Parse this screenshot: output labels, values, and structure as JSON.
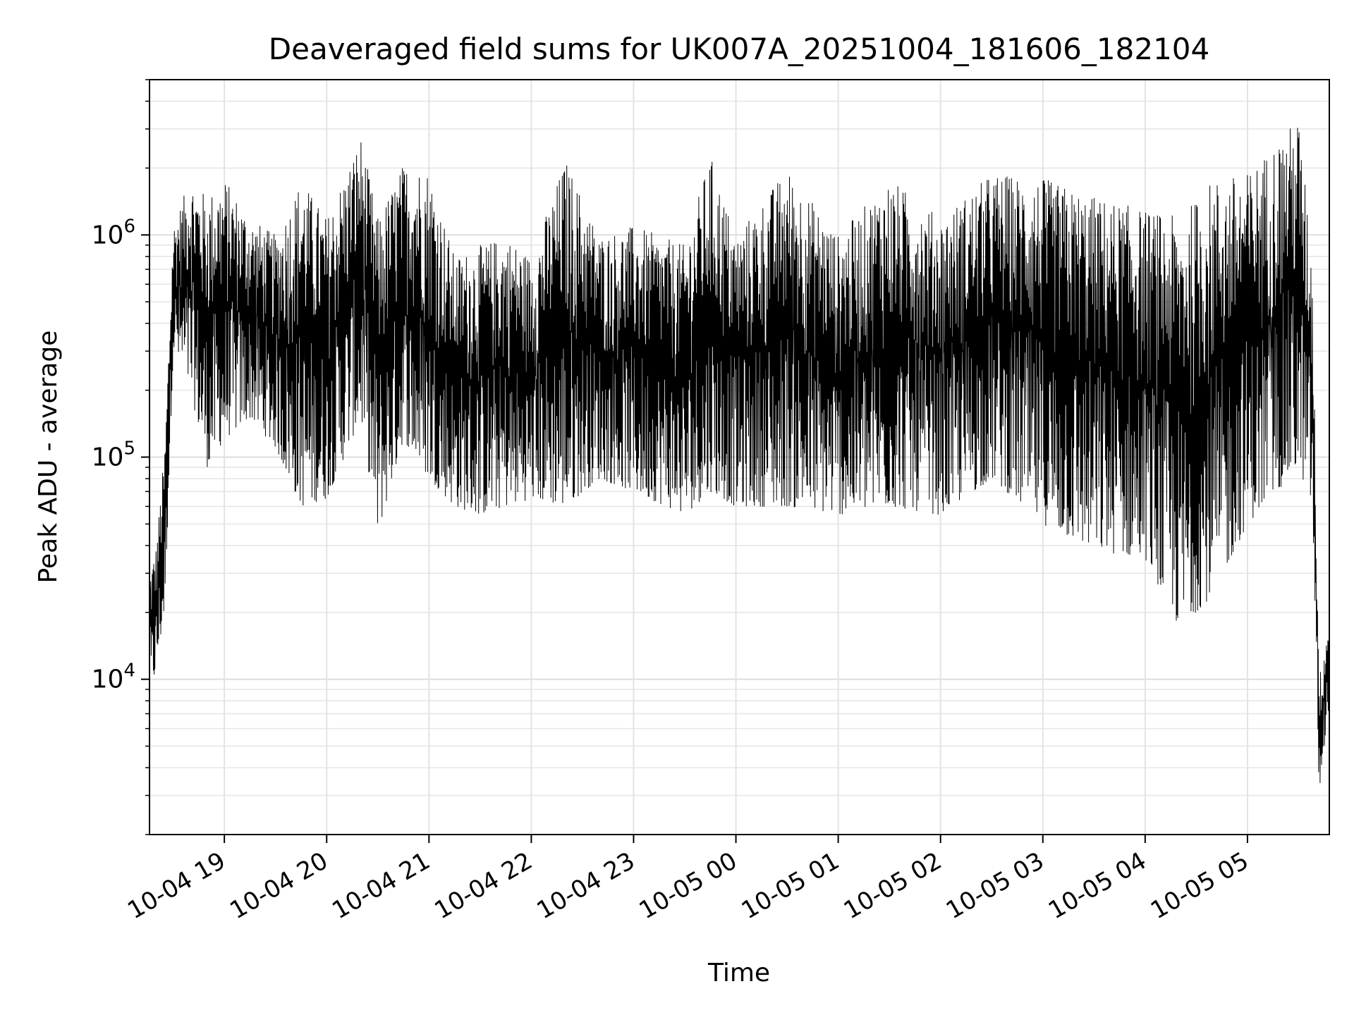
{
  "chart_data": {
    "type": "line",
    "title": "Deaveraged field sums for UK007A_20251004_181606_182104",
    "xlabel": "Time",
    "ylabel": "Peak ADU - average",
    "yscale": "log",
    "ylim": [
      2000,
      5000000
    ],
    "xlim": [
      "2025-10-04T18:16:06",
      "2025-10-05T05:48:00"
    ],
    "grid": true,
    "x_ticks": [
      {
        "t": "2025-10-04T19:00",
        "label": "10-04 19"
      },
      {
        "t": "2025-10-04T20:00",
        "label": "10-04 20"
      },
      {
        "t": "2025-10-04T21:00",
        "label": "10-04 21"
      },
      {
        "t": "2025-10-04T22:00",
        "label": "10-04 22"
      },
      {
        "t": "2025-10-04T23:00",
        "label": "10-04 23"
      },
      {
        "t": "2025-10-05T00:00",
        "label": "10-05 00"
      },
      {
        "t": "2025-10-05T01:00",
        "label": "10-05 01"
      },
      {
        "t": "2025-10-05T02:00",
        "label": "10-05 02"
      },
      {
        "t": "2025-10-05T03:00",
        "label": "10-05 03"
      },
      {
        "t": "2025-10-05T04:00",
        "label": "10-05 04"
      },
      {
        "t": "2025-10-05T05:00",
        "label": "10-05 05"
      }
    ],
    "y_ticks": [
      {
        "value": 10000,
        "base": "10",
        "exp": "4"
      },
      {
        "value": 100000,
        "base": "10",
        "exp": "5"
      },
      {
        "value": 1000000,
        "base": "10",
        "exp": "6"
      }
    ],
    "series": [
      {
        "color": "#000000",
        "envelope": [
          {
            "t": "2025-10-04T18:16",
            "low": 8000,
            "high": 30000
          },
          {
            "t": "2025-10-04T18:20",
            "low": 11000,
            "high": 40000
          },
          {
            "t": "2025-10-04T18:25",
            "low": 20000,
            "high": 110000
          },
          {
            "t": "2025-10-04T18:30",
            "low": 300000,
            "high": 1100000
          },
          {
            "t": "2025-10-04T18:40",
            "low": 200000,
            "high": 1800000
          },
          {
            "t": "2025-10-04T18:50",
            "low": 90000,
            "high": 1500000
          },
          {
            "t": "2025-10-04T19:00",
            "low": 120000,
            "high": 1800000
          },
          {
            "t": "2025-10-04T19:15",
            "low": 150000,
            "high": 1200000
          },
          {
            "t": "2025-10-04T19:30",
            "low": 110000,
            "high": 1000000
          },
          {
            "t": "2025-10-04T19:45",
            "low": 60000,
            "high": 1800000
          },
          {
            "t": "2025-10-04T20:00",
            "low": 65000,
            "high": 1200000
          },
          {
            "t": "2025-10-04T20:20",
            "low": 150000,
            "high": 2800000
          },
          {
            "t": "2025-10-04T20:30",
            "low": 45000,
            "high": 1200000
          },
          {
            "t": "2025-10-04T20:45",
            "low": 120000,
            "high": 2100000
          },
          {
            "t": "2025-10-04T21:00",
            "low": 80000,
            "high": 2000000
          },
          {
            "t": "2025-10-04T21:15",
            "low": 60000,
            "high": 800000
          },
          {
            "t": "2025-10-04T21:30",
            "low": 55000,
            "high": 900000
          },
          {
            "t": "2025-10-04T21:45",
            "low": 60000,
            "high": 1000000
          },
          {
            "t": "2025-10-04T22:00",
            "low": 65000,
            "high": 800000
          },
          {
            "t": "2025-10-04T22:20",
            "low": 60000,
            "high": 2200000
          },
          {
            "t": "2025-10-04T22:40",
            "low": 80000,
            "high": 1000000
          },
          {
            "t": "2025-10-04T23:00",
            "low": 70000,
            "high": 1100000
          },
          {
            "t": "2025-10-04T23:30",
            "low": 55000,
            "high": 900000
          },
          {
            "t": "2025-10-04T23:45",
            "low": 70000,
            "high": 2300000
          },
          {
            "t": "2025-10-05T00:00",
            "low": 60000,
            "high": 1000000
          },
          {
            "t": "2025-10-05T00:30",
            "low": 60000,
            "high": 2000000
          },
          {
            "t": "2025-10-05T01:00",
            "low": 55000,
            "high": 1000000
          },
          {
            "t": "2025-10-05T01:30",
            "low": 60000,
            "high": 1800000
          },
          {
            "t": "2025-10-05T02:00",
            "low": 55000,
            "high": 1200000
          },
          {
            "t": "2025-10-05T02:30",
            "low": 80000,
            "high": 1900000
          },
          {
            "t": "2025-10-05T03:00",
            "low": 50000,
            "high": 1800000
          },
          {
            "t": "2025-10-05T03:30",
            "low": 38000,
            "high": 1500000
          },
          {
            "t": "2025-10-05T04:00",
            "low": 35000,
            "high": 1300000
          },
          {
            "t": "2025-10-05T04:20",
            "low": 17000,
            "high": 1200000
          },
          {
            "t": "2025-10-05T04:40",
            "low": 24000,
            "high": 1800000
          },
          {
            "t": "2025-10-05T05:00",
            "low": 50000,
            "high": 1900000
          },
          {
            "t": "2025-10-05T05:30",
            "low": 90000,
            "high": 3400000
          },
          {
            "t": "2025-10-05T05:38",
            "low": 60000,
            "high": 800000
          },
          {
            "t": "2025-10-05T05:42",
            "low": 3000,
            "high": 10000
          },
          {
            "t": "2025-10-05T05:48",
            "low": 8000,
            "high": 20000
          }
        ]
      }
    ]
  }
}
